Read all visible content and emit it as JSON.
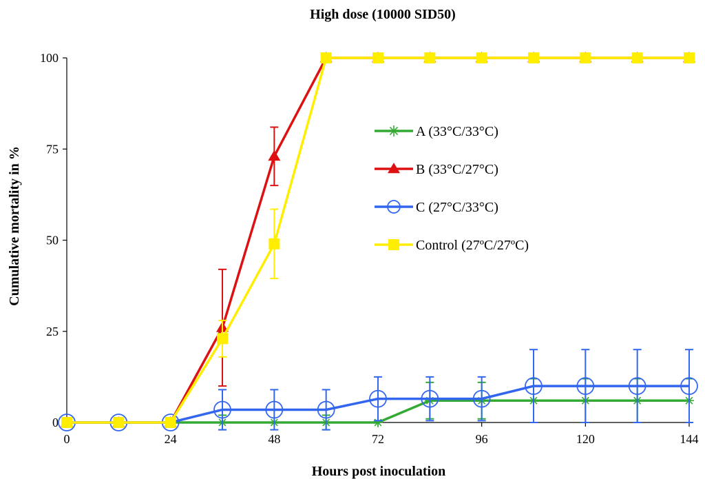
{
  "chart_data": {
    "type": "line",
    "title": "High dose (10000 SID50)",
    "xlabel": "Hours post inoculation",
    "ylabel": "Cumulative mortality in %",
    "xlim": [
      0,
      144
    ],
    "ylim": [
      0,
      100
    ],
    "xticks": [
      0,
      24,
      48,
      72,
      96,
      120,
      144
    ],
    "yticks": [
      0,
      25,
      50,
      75,
      100
    ],
    "grid": false,
    "legend_position": "inside-right",
    "series": [
      {
        "name": "A (33°C/33°C)",
        "color": "#33aa33",
        "marker": "star",
        "x": [
          24,
          36,
          48,
          60,
          72,
          84,
          96,
          108,
          120,
          132,
          144
        ],
        "y": [
          0,
          0,
          0,
          0,
          0,
          6,
          6,
          6,
          6,
          6,
          6
        ],
        "err": [
          0,
          2,
          0,
          2,
          0,
          5,
          5,
          6,
          6,
          6,
          6
        ]
      },
      {
        "name": "B (33°C/27°C)",
        "color": "#dd1111",
        "marker": "triangle",
        "x": [
          0,
          12,
          24,
          36,
          48,
          60,
          72,
          84,
          96,
          108,
          120,
          132,
          144
        ],
        "y": [
          0,
          0,
          0,
          26,
          73,
          100,
          100,
          100,
          100,
          100,
          100,
          100,
          100
        ],
        "err": [
          0,
          0,
          0,
          16,
          8,
          0,
          0,
          0,
          0,
          0,
          0,
          0,
          0
        ]
      },
      {
        "name": "C (27°C/33°C)",
        "color": "#3366ee",
        "marker": "circle-open",
        "x": [
          0,
          12,
          24,
          36,
          48,
          60,
          72,
          84,
          96,
          108,
          120,
          132,
          144
        ],
        "y": [
          0,
          0,
          0,
          3.5,
          3.5,
          3.5,
          6.5,
          6.5,
          6.5,
          10,
          10,
          10,
          10
        ],
        "err": [
          0,
          0,
          0,
          5.5,
          5.5,
          5.5,
          6,
          6,
          6,
          10,
          10,
          10,
          10
        ]
      },
      {
        "name": "Control (27ºC/27ºC)",
        "color": "#ffee00",
        "marker": "square",
        "x": [
          0,
          12,
          24,
          36,
          48,
          60,
          72,
          84,
          96,
          108,
          120,
          132,
          144
        ],
        "y": [
          0,
          0,
          0,
          23,
          49,
          100,
          100,
          100,
          100,
          100,
          100,
          100,
          100
        ],
        "err": [
          0,
          0,
          0,
          5,
          9.5,
          0,
          0,
          0,
          0,
          0,
          0,
          0,
          0
        ]
      }
    ]
  }
}
